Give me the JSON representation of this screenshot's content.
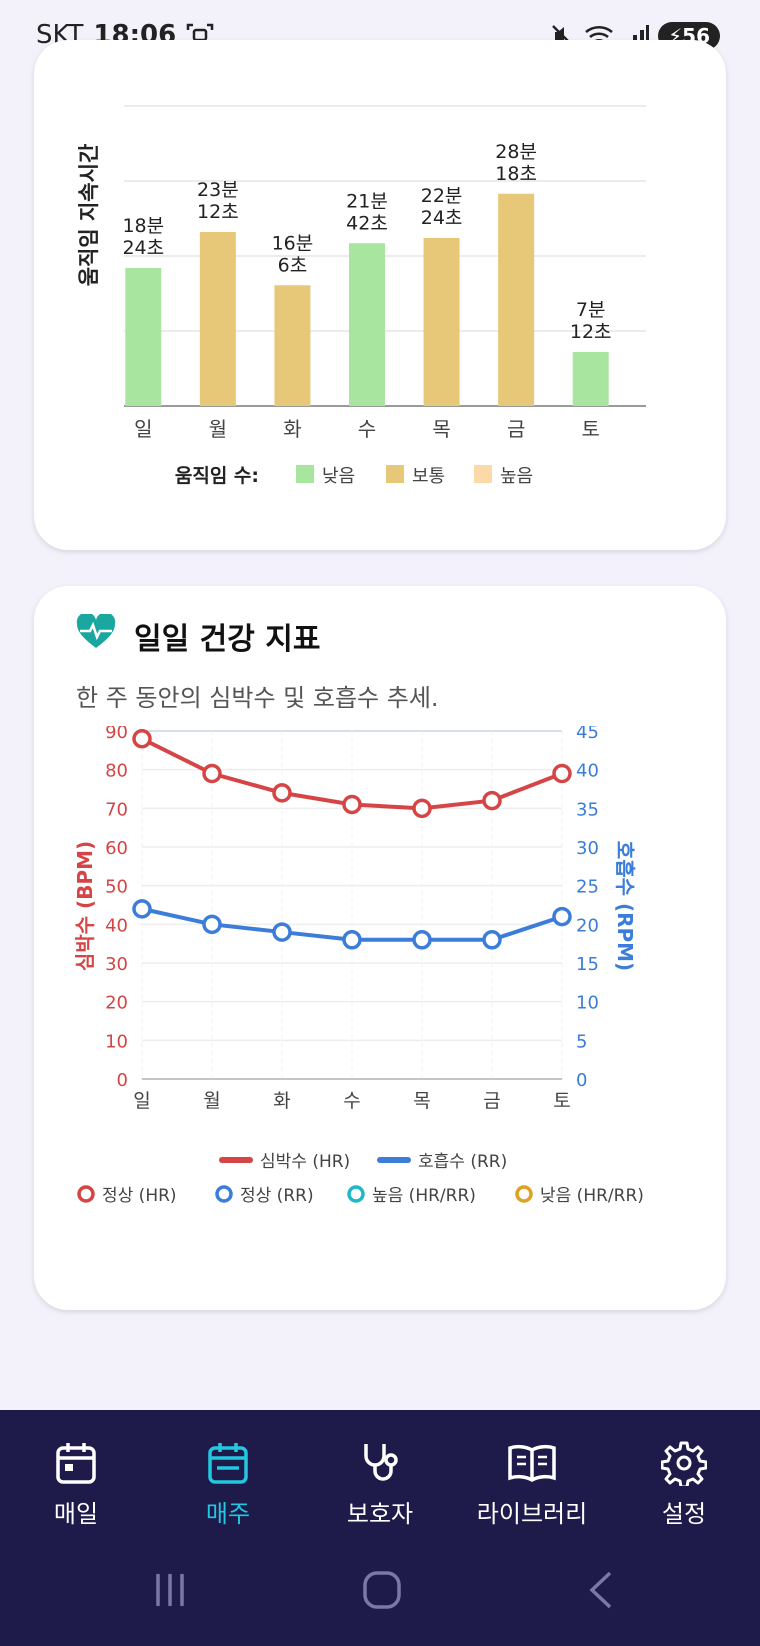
{
  "status": {
    "carrier": "SKT",
    "time": "18:06",
    "battery": "56"
  },
  "activity_chart": {
    "ylabel": "움직임 지속시간",
    "legend_title": "움직임 수:",
    "legend": [
      {
        "label": "낮음",
        "color": "#a8e6a0"
      },
      {
        "label": "보통",
        "color": "#e6c878"
      },
      {
        "label": "높음",
        "color": "#fcd9a6"
      }
    ]
  },
  "health_card": {
    "title": "일일 건강 지표",
    "subtitle": "한 주 동안의 심박수 및 호흡수 추세."
  },
  "chart_data": [
    {
      "type": "bar",
      "categories": [
        "일",
        "월",
        "화",
        "수",
        "목",
        "금",
        "토"
      ],
      "values": [
        18.4,
        23.2,
        16.1,
        21.7,
        22.4,
        28.3,
        7.2
      ],
      "labels": [
        [
          "18분",
          "24초"
        ],
        [
          "23분",
          "12초"
        ],
        [
          "16분",
          "6초"
        ],
        [
          "21분",
          "42초"
        ],
        [
          "22분",
          "24초"
        ],
        [
          "28분",
          "18초"
        ],
        [
          "7분",
          "12초"
        ]
      ],
      "levels": [
        "낮음",
        "보통",
        "보통",
        "낮음",
        "보통",
        "보통",
        "낮음"
      ],
      "ylabel": "움직임 지속시간",
      "ylim": [
        0,
        40
      ],
      "grid": true
    },
    {
      "type": "line",
      "categories": [
        "일",
        "월",
        "화",
        "수",
        "목",
        "금",
        "토"
      ],
      "series": [
        {
          "name": "심박수 (HR)",
          "axis": "left",
          "color": "#d64545",
          "values": [
            88,
            79,
            74,
            71,
            70,
            72,
            79
          ]
        },
        {
          "name": "호흡수 (RR)",
          "axis": "right",
          "color": "#3b7dd8",
          "values": [
            22,
            20,
            19,
            18,
            18,
            18,
            21
          ]
        }
      ],
      "ylabel_left": "심박수 (BPM)",
      "ylabel_right": "호흡수 (RPM)",
      "ylim_left": [
        0,
        90
      ],
      "ylim_right": [
        0,
        45
      ],
      "yticks_left": [
        "0",
        "10",
        "20",
        "30",
        "40",
        "50",
        "60",
        "70",
        "80",
        "90"
      ],
      "yticks_right": [
        "0",
        "5",
        "10",
        "15",
        "20",
        "25",
        "30",
        "35",
        "40",
        "45"
      ],
      "legend_lines": [
        {
          "label": "심박수 (HR)",
          "color": "#d64545"
        },
        {
          "label": "호흡수 (RR)",
          "color": "#3b7dd8"
        }
      ],
      "legend_markers": [
        {
          "label": "정상 (HR)",
          "color": "#d64545"
        },
        {
          "label": "정상 (RR)",
          "color": "#3b7dd8"
        },
        {
          "label": "높음 (HR/RR)",
          "color": "#1fb8c8"
        },
        {
          "label": "낮음 (HR/RR)",
          "color": "#e0a020"
        }
      ]
    }
  ],
  "nav": {
    "items": [
      {
        "label": "매일",
        "icon": "calendar-icon",
        "active": false
      },
      {
        "label": "매주",
        "icon": "calendar-week-icon",
        "active": true
      },
      {
        "label": "보호자",
        "icon": "stethoscope-icon",
        "active": false
      },
      {
        "label": "라이브러리",
        "icon": "book-icon",
        "active": false
      },
      {
        "label": "설정",
        "icon": "gear-icon",
        "active": false
      }
    ]
  }
}
